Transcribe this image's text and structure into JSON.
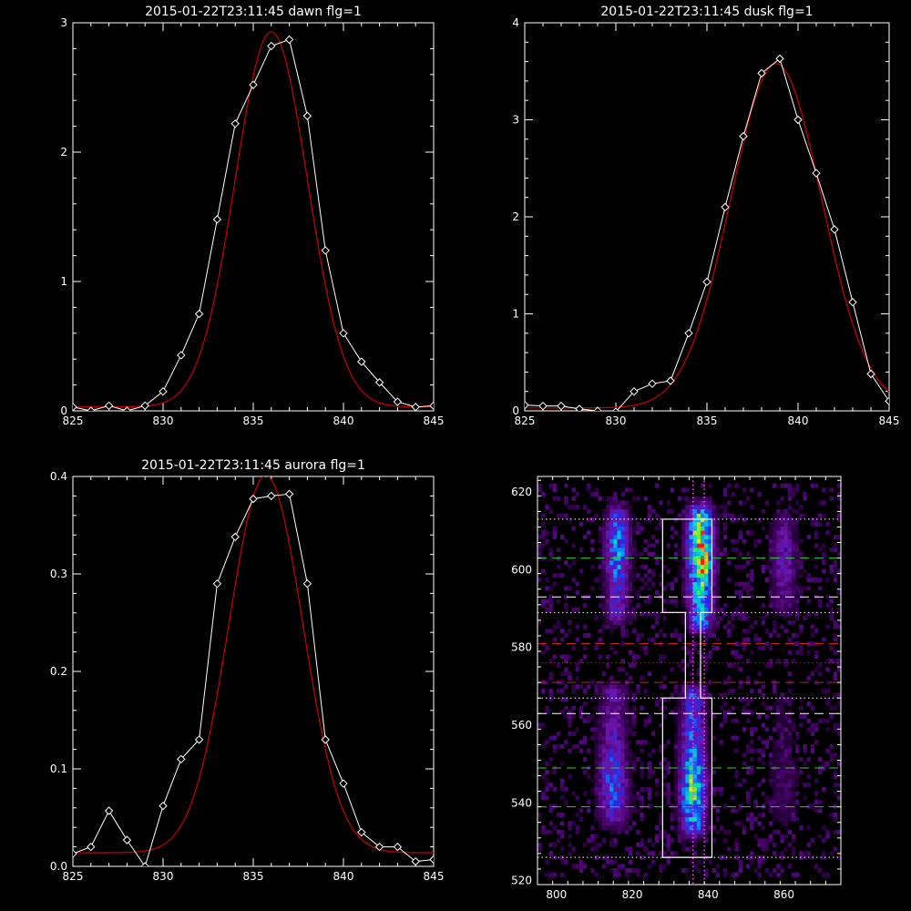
{
  "colors": {
    "background": "#000000",
    "axes": "#ffffff",
    "data_line": "#ffffff",
    "fit_line": "#cc0000",
    "guide_white": "#ffffff",
    "guide_green": "#33cc33",
    "guide_red": "#cc2222",
    "guide_magenta": "#ff44ff"
  },
  "chart_data": [
    {
      "type": "line",
      "title": "2015-01-22T23:11:45 dawn flg=1",
      "xlim": [
        825,
        845
      ],
      "ylim": [
        0,
        3
      ],
      "xticks": [
        825,
        830,
        835,
        840,
        845
      ],
      "yticks": [
        0,
        1,
        2,
        3
      ],
      "series": [
        {
          "role": "data",
          "marker": "diamond",
          "x": [
            825,
            826,
            827,
            828,
            829,
            830,
            831,
            832,
            833,
            834,
            835,
            836,
            837,
            838,
            839,
            840,
            841,
            842,
            843,
            844,
            845
          ],
          "y": [
            0.03,
            0.0,
            0.04,
            0.0,
            0.04,
            0.15,
            0.43,
            0.75,
            1.48,
            2.22,
            2.52,
            2.82,
            2.87,
            2.28,
            1.24,
            0.6,
            0.38,
            0.22,
            0.07,
            0.03,
            0.04
          ]
        },
        {
          "role": "fit",
          "model": "gaussian",
          "amplitude": 2.9,
          "center": 836.0,
          "sigma": 2.0,
          "offset": 0.03
        }
      ]
    },
    {
      "type": "line",
      "title": "2015-01-22T23:11:45 dusk flg=1",
      "xlim": [
        825,
        845
      ],
      "ylim": [
        0,
        4
      ],
      "xticks": [
        825,
        830,
        835,
        840,
        845
      ],
      "yticks": [
        0,
        1,
        2,
        3,
        4
      ],
      "series": [
        {
          "role": "data",
          "marker": "diamond",
          "x": [
            825,
            826,
            827,
            828,
            829,
            830,
            831,
            832,
            833,
            834,
            835,
            836,
            837,
            838,
            839,
            840,
            841,
            842,
            843,
            844,
            845
          ],
          "y": [
            0.06,
            0.05,
            0.05,
            0.02,
            0.0,
            -0.01,
            0.2,
            0.28,
            0.31,
            0.8,
            1.33,
            2.1,
            2.83,
            3.48,
            3.63,
            3.0,
            2.45,
            1.87,
            1.12,
            0.38,
            0.1
          ]
        },
        {
          "role": "fit",
          "model": "gaussian",
          "amplitude": 3.55,
          "center": 838.8,
          "sigma": 2.5,
          "offset": 0.03
        }
      ]
    },
    {
      "type": "line",
      "title": "2015-01-22T23:11:45 aurora flg=1",
      "xlim": [
        825,
        845
      ],
      "ylim": [
        0,
        0.4
      ],
      "xticks": [
        825,
        830,
        835,
        840,
        845
      ],
      "yticks": [
        0.0,
        0.1,
        0.2,
        0.3,
        0.4
      ],
      "ytick_labels": [
        "0.0",
        "0.1",
        "0.2",
        "0.3",
        "0.4"
      ],
      "series": [
        {
          "role": "data",
          "marker": "diamond",
          "x": [
            825,
            826,
            827,
            828,
            829,
            830,
            831,
            832,
            833,
            834,
            835,
            836,
            837,
            838,
            839,
            840,
            841,
            842,
            843,
            844,
            845
          ],
          "y": [
            0.013,
            0.02,
            0.057,
            0.027,
            0.0,
            0.062,
            0.11,
            0.13,
            0.29,
            0.338,
            0.377,
            0.38,
            0.382,
            0.29,
            0.13,
            0.085,
            0.035,
            0.02,
            0.02,
            0.005,
            0.007
          ]
        },
        {
          "role": "fit",
          "model": "gaussian",
          "amplitude": 0.387,
          "center": 835.7,
          "sigma": 2.05,
          "offset": 0.014
        }
      ]
    },
    {
      "type": "heatmap",
      "title": "",
      "xlim": [
        795,
        875
      ],
      "ylim": [
        519,
        624
      ],
      "xticks": [
        800,
        820,
        840,
        860
      ],
      "yticks": [
        520,
        540,
        560,
        580,
        600,
        620
      ],
      "bands": [
        {
          "x_center": 816,
          "x_width": 5,
          "y_min": 588,
          "y_max": 614,
          "intensity": 0.55,
          "peak_y": 604
        },
        {
          "x_center": 815,
          "x_width": 6,
          "y_min": 535,
          "y_max": 568,
          "intensity": 0.45,
          "peak_y": 545
        },
        {
          "x_center": 838,
          "x_width": 5,
          "y_min": 586,
          "y_max": 614,
          "intensity": 1.0,
          "peak_y": 604
        },
        {
          "x_center": 836,
          "x_width": 5,
          "y_min": 533,
          "y_max": 567,
          "intensity": 0.75,
          "peak_y": 543
        },
        {
          "x_center": 860,
          "x_width": 5,
          "y_min": 590,
          "y_max": 612,
          "intensity": 0.3,
          "peak_y": 601
        },
        {
          "x_center": 860,
          "x_width": 6,
          "y_min": 535,
          "y_max": 565,
          "intensity": 0.14,
          "peak_y": 545
        }
      ],
      "outline": [
        [
          828,
          613
        ],
        [
          841,
          613
        ],
        [
          841,
          589
        ],
        [
          838,
          589
        ],
        [
          838,
          567
        ],
        [
          841,
          567
        ],
        [
          841,
          526
        ],
        [
          828,
          526
        ],
        [
          828,
          567
        ],
        [
          834,
          567
        ],
        [
          834,
          589
        ],
        [
          828,
          589
        ],
        [
          828,
          613
        ]
      ],
      "hlines": [
        {
          "y": 613,
          "color": "white",
          "style": "dotted"
        },
        {
          "y": 603,
          "color": "green",
          "style": "dashed"
        },
        {
          "y": 593,
          "color": "white",
          "style": "dashed"
        },
        {
          "y": 589,
          "color": "white",
          "style": "dotted"
        },
        {
          "y": 581,
          "color": "red",
          "style": "dashed"
        },
        {
          "y": 576,
          "color": "red",
          "style": "dotted"
        },
        {
          "y": 571,
          "color": "red",
          "style": "dashed"
        },
        {
          "y": 567,
          "color": "white",
          "style": "dotted"
        },
        {
          "y": 563,
          "color": "white",
          "style": "dashed"
        },
        {
          "y": 549,
          "color": "green",
          "style": "dashed"
        },
        {
          "y": 539,
          "color": "green",
          "style": "dashed"
        },
        {
          "y": 526,
          "color": "white",
          "style": "dotted"
        }
      ],
      "vlines": [
        {
          "x": 836,
          "color": "magenta",
          "style": "dotted"
        },
        {
          "x": 839,
          "color": "magenta",
          "style": "dotted"
        }
      ]
    }
  ]
}
